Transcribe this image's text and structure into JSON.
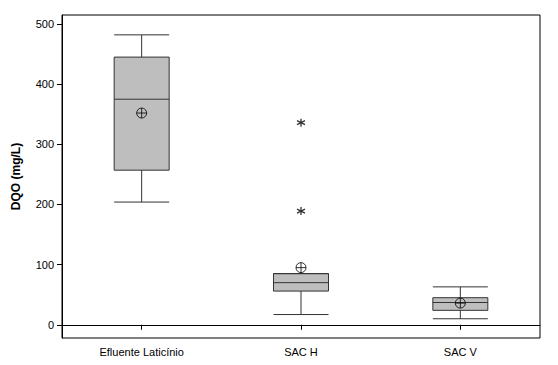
{
  "chart_data": {
    "type": "boxplot",
    "ylabel": "DQO (mg/L)",
    "categories": [
      "Efluente Laticínio",
      "SAC H",
      "SAC V"
    ],
    "boxes": [
      [
        204,
        257,
        375,
        445,
        482
      ],
      [
        17,
        56,
        70,
        85,
        85
      ],
      [
        10,
        24,
        37,
        45,
        63
      ]
    ],
    "means": [
      352,
      95,
      36
    ],
    "outliers": [
      [],
      [
        336,
        189
      ],
      []
    ],
    "color": "#bebebe",
    "ylim": [
      -22,
      515
    ],
    "yticks": [
      0,
      100,
      200,
      300,
      400,
      500
    ],
    "grid": false
  }
}
